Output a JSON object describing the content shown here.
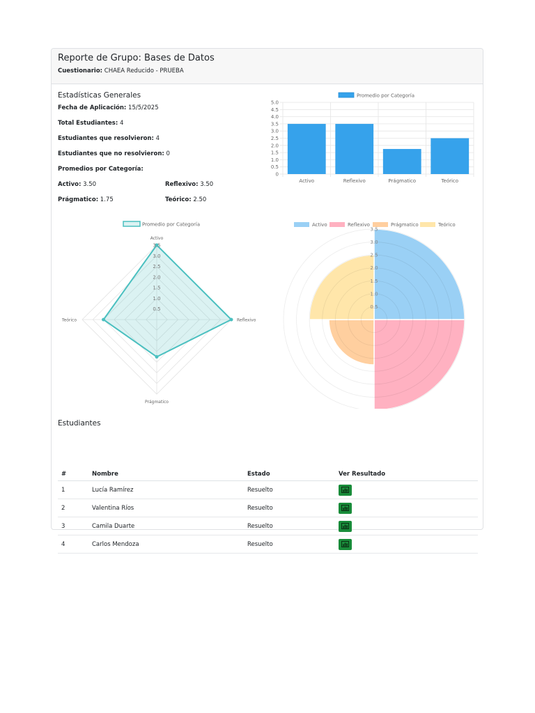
{
  "report": {
    "title": "Reporte de Grupo: Bases de Datos",
    "questionnaire_label": "Cuestionario:",
    "questionnaire_value": "CHAEA Reducido - PRUEBA"
  },
  "stats": {
    "section_title": "Estadísticas Generales",
    "date_label": "Fecha de Aplicación:",
    "date_value": "15/5/2025",
    "total_label": "Total Estudiantes:",
    "total_value": "4",
    "resolved_label": "Estudiantes que resolvieron:",
    "resolved_value": "4",
    "unresolved_label": "Estudiantes que no resolvieron:",
    "unresolved_value": "0",
    "averages_title": "Promedios por Categoría:",
    "averages": [
      {
        "label": "Activo:",
        "value": "3.50"
      },
      {
        "label": "Reflexivo:",
        "value": "3.50"
      },
      {
        "label": "Prágmatico:",
        "value": "1.75"
      },
      {
        "label": "Teórico:",
        "value": "2.50"
      }
    ]
  },
  "chart_data": [
    {
      "type": "bar",
      "categories": [
        "Activo",
        "Reflexivo",
        "Prágmatico",
        "Teórico"
      ],
      "series": [
        {
          "name": "Promedio por Categoría",
          "values": [
            3.5,
            3.5,
            1.75,
            2.5
          ]
        }
      ],
      "yticks": [
        "0",
        "0.5",
        "1.0",
        "1.5",
        "2.0",
        "2.5",
        "3.0",
        "3.5",
        "4.0",
        "4.5",
        "5.0"
      ],
      "ylim": [
        0,
        5
      ],
      "grid": true,
      "legend": "top",
      "color": "#36a2eb"
    },
    {
      "type": "radar",
      "categories": [
        "Activo",
        "Reflexivo",
        "Prágmatico",
        "Teórico"
      ],
      "series": [
        {
          "name": "Promedio por Categoría",
          "values": [
            3.5,
            3.5,
            1.75,
            2.5
          ]
        }
      ],
      "rticks": [
        "0.5",
        "1.0",
        "1.5",
        "2.0",
        "2.5",
        "3.0",
        "3.5"
      ],
      "rlim": [
        0,
        3.5
      ],
      "legend": "top",
      "color": "#4bc0c0"
    },
    {
      "type": "polarArea",
      "categories": [
        "Activo",
        "Reflexivo",
        "Prágmatico",
        "Teórico"
      ],
      "values": [
        3.5,
        3.5,
        1.75,
        2.5
      ],
      "rticks": [
        "0.5",
        "1.0",
        "1.5",
        "2.0",
        "2.5",
        "3.0",
        "3.5"
      ],
      "rlim": [
        0,
        3.5
      ],
      "legend": "top",
      "colors": [
        "#9ad0f5",
        "#ffb1c1",
        "#ffcf9f",
        "#ffe6aa"
      ]
    }
  ],
  "students": {
    "section_title": "Estudiantes",
    "headers": [
      "#",
      "Nombre",
      "Estado",
      "Ver Resultado"
    ],
    "rows": [
      {
        "num": "1",
        "name": "Lucía Ramírez",
        "status": "Resuelto"
      },
      {
        "num": "2",
        "name": "Valentina Ríos",
        "status": "Resuelto"
      },
      {
        "num": "3",
        "name": "Camila Duarte",
        "status": "Resuelto"
      },
      {
        "num": "4",
        "name": "Carlos Mendoza",
        "status": "Resuelto"
      }
    ],
    "result_icon": "bar-chart-icon",
    "button_color": "#198c3a"
  }
}
